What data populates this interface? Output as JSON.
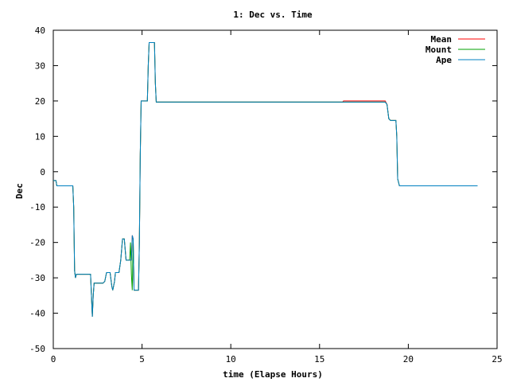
{
  "chart_data": {
    "type": "line",
    "title": "1: Dec vs. Time",
    "xlabel": "time (Elapse Hours)",
    "ylabel": "Dec",
    "xlim": [
      0,
      25
    ],
    "ylim": [
      -50,
      40
    ],
    "xticks": [
      0,
      5,
      10,
      15,
      20,
      25
    ],
    "yticks": [
      -50,
      -40,
      -30,
      -20,
      -10,
      0,
      10,
      20,
      30,
      40
    ],
    "grid": false,
    "legend": "top-right",
    "series": [
      {
        "name": "Mean",
        "color": "#ff0000",
        "points": [
          [
            0,
            -2.5
          ],
          [
            0.15,
            -2.5
          ],
          [
            0.2,
            -4
          ],
          [
            1.1,
            -4
          ],
          [
            1.15,
            -10
          ],
          [
            1.2,
            -28
          ],
          [
            1.25,
            -30
          ],
          [
            1.3,
            -29
          ],
          [
            2.1,
            -29
          ],
          [
            2.15,
            -35
          ],
          [
            2.2,
            -41
          ],
          [
            2.25,
            -35
          ],
          [
            2.3,
            -31.5
          ],
          [
            2.8,
            -31.5
          ],
          [
            2.9,
            -31
          ],
          [
            3.0,
            -28.5
          ],
          [
            3.2,
            -28.5
          ],
          [
            3.3,
            -32.5
          ],
          [
            3.35,
            -33.5
          ],
          [
            3.45,
            -31
          ],
          [
            3.5,
            -28.5
          ],
          [
            3.7,
            -28.5
          ],
          [
            3.8,
            -25
          ],
          [
            3.9,
            -19
          ],
          [
            4.0,
            -19
          ],
          [
            4.05,
            -22
          ],
          [
            4.1,
            -25
          ],
          [
            4.4,
            -25
          ],
          [
            4.45,
            -18
          ],
          [
            4.5,
            -19
          ],
          [
            4.55,
            -33.5
          ],
          [
            4.8,
            -33.5
          ],
          [
            4.85,
            -20
          ],
          [
            4.9,
            5
          ],
          [
            4.95,
            20
          ],
          [
            5.3,
            20
          ],
          [
            5.35,
            30
          ],
          [
            5.4,
            36.5
          ],
          [
            5.7,
            36.5
          ],
          [
            5.75,
            25
          ],
          [
            5.8,
            19.7
          ],
          [
            16.3,
            19.7
          ],
          [
            16.35,
            20
          ],
          [
            18.7,
            20
          ],
          [
            18.8,
            19
          ],
          [
            18.9,
            15
          ],
          [
            19.0,
            14.5
          ],
          [
            19.3,
            14.5
          ],
          [
            19.35,
            10
          ],
          [
            19.4,
            -2
          ],
          [
            19.5,
            -4
          ],
          [
            23.9,
            -4
          ]
        ]
      },
      {
        "name": "Mount",
        "color": "#00a000",
        "points": [
          [
            0,
            -2.5
          ],
          [
            0.15,
            -2.5
          ],
          [
            0.2,
            -4
          ],
          [
            1.1,
            -4
          ],
          [
            1.15,
            -10
          ],
          [
            1.2,
            -28
          ],
          [
            1.25,
            -30
          ],
          [
            1.3,
            -29
          ],
          [
            2.1,
            -29
          ],
          [
            2.15,
            -35
          ],
          [
            2.2,
            -41
          ],
          [
            2.25,
            -35
          ],
          [
            2.3,
            -31.5
          ],
          [
            2.8,
            -31.5
          ],
          [
            2.9,
            -31
          ],
          [
            3.0,
            -28.5
          ],
          [
            3.2,
            -28.5
          ],
          [
            3.3,
            -32.5
          ],
          [
            3.35,
            -33.5
          ],
          [
            3.45,
            -31
          ],
          [
            3.5,
            -28.5
          ],
          [
            3.7,
            -28.5
          ],
          [
            3.8,
            -25
          ],
          [
            3.9,
            -19
          ],
          [
            4.0,
            -19
          ],
          [
            4.05,
            -22
          ],
          [
            4.1,
            -25
          ],
          [
            4.3,
            -25
          ],
          [
            4.35,
            -20
          ],
          [
            4.4,
            -29
          ],
          [
            4.45,
            -33.5
          ],
          [
            4.5,
            -19
          ],
          [
            4.55,
            -33.5
          ],
          [
            4.8,
            -33.5
          ],
          [
            4.85,
            -20
          ],
          [
            4.9,
            5
          ],
          [
            4.95,
            20
          ],
          [
            5.3,
            20
          ],
          [
            5.35,
            30
          ],
          [
            5.4,
            36.5
          ],
          [
            5.7,
            36.5
          ],
          [
            5.75,
            25
          ],
          [
            5.8,
            19.7
          ],
          [
            18.7,
            19.7
          ],
          [
            18.8,
            19
          ],
          [
            18.9,
            15
          ],
          [
            19.0,
            14.5
          ],
          [
            19.3,
            14.5
          ],
          [
            19.35,
            10
          ],
          [
            19.4,
            -2
          ],
          [
            19.5,
            -4
          ],
          [
            23.9,
            -4
          ]
        ]
      },
      {
        "name": "Ape",
        "color": "#0080c0",
        "points": [
          [
            0,
            -2.5
          ],
          [
            0.15,
            -2.5
          ],
          [
            0.2,
            -4
          ],
          [
            1.1,
            -4
          ],
          [
            1.15,
            -10
          ],
          [
            1.2,
            -28
          ],
          [
            1.25,
            -30
          ],
          [
            1.3,
            -29
          ],
          [
            2.1,
            -29
          ],
          [
            2.15,
            -35
          ],
          [
            2.2,
            -41
          ],
          [
            2.25,
            -35
          ],
          [
            2.3,
            -31.5
          ],
          [
            2.8,
            -31.5
          ],
          [
            2.9,
            -31
          ],
          [
            3.0,
            -28.5
          ],
          [
            3.2,
            -28.5
          ],
          [
            3.3,
            -32.5
          ],
          [
            3.35,
            -33.5
          ],
          [
            3.45,
            -31
          ],
          [
            3.5,
            -28.5
          ],
          [
            3.7,
            -28.5
          ],
          [
            3.8,
            -25
          ],
          [
            3.9,
            -19
          ],
          [
            4.0,
            -19
          ],
          [
            4.05,
            -22
          ],
          [
            4.1,
            -25
          ],
          [
            4.4,
            -25
          ],
          [
            4.45,
            -18
          ],
          [
            4.5,
            -19
          ],
          [
            4.55,
            -33.5
          ],
          [
            4.8,
            -33.5
          ],
          [
            4.85,
            -20
          ],
          [
            4.9,
            5
          ],
          [
            4.95,
            20
          ],
          [
            5.3,
            20
          ],
          [
            5.35,
            30
          ],
          [
            5.4,
            36.5
          ],
          [
            5.7,
            36.5
          ],
          [
            5.75,
            25
          ],
          [
            5.8,
            19.7
          ],
          [
            18.7,
            19.7
          ],
          [
            18.8,
            19
          ],
          [
            18.9,
            15
          ],
          [
            19.0,
            14.5
          ],
          [
            19.3,
            14.5
          ],
          [
            19.35,
            10
          ],
          [
            19.4,
            -2
          ],
          [
            19.5,
            -4
          ],
          [
            23.9,
            -4
          ]
        ]
      }
    ]
  }
}
